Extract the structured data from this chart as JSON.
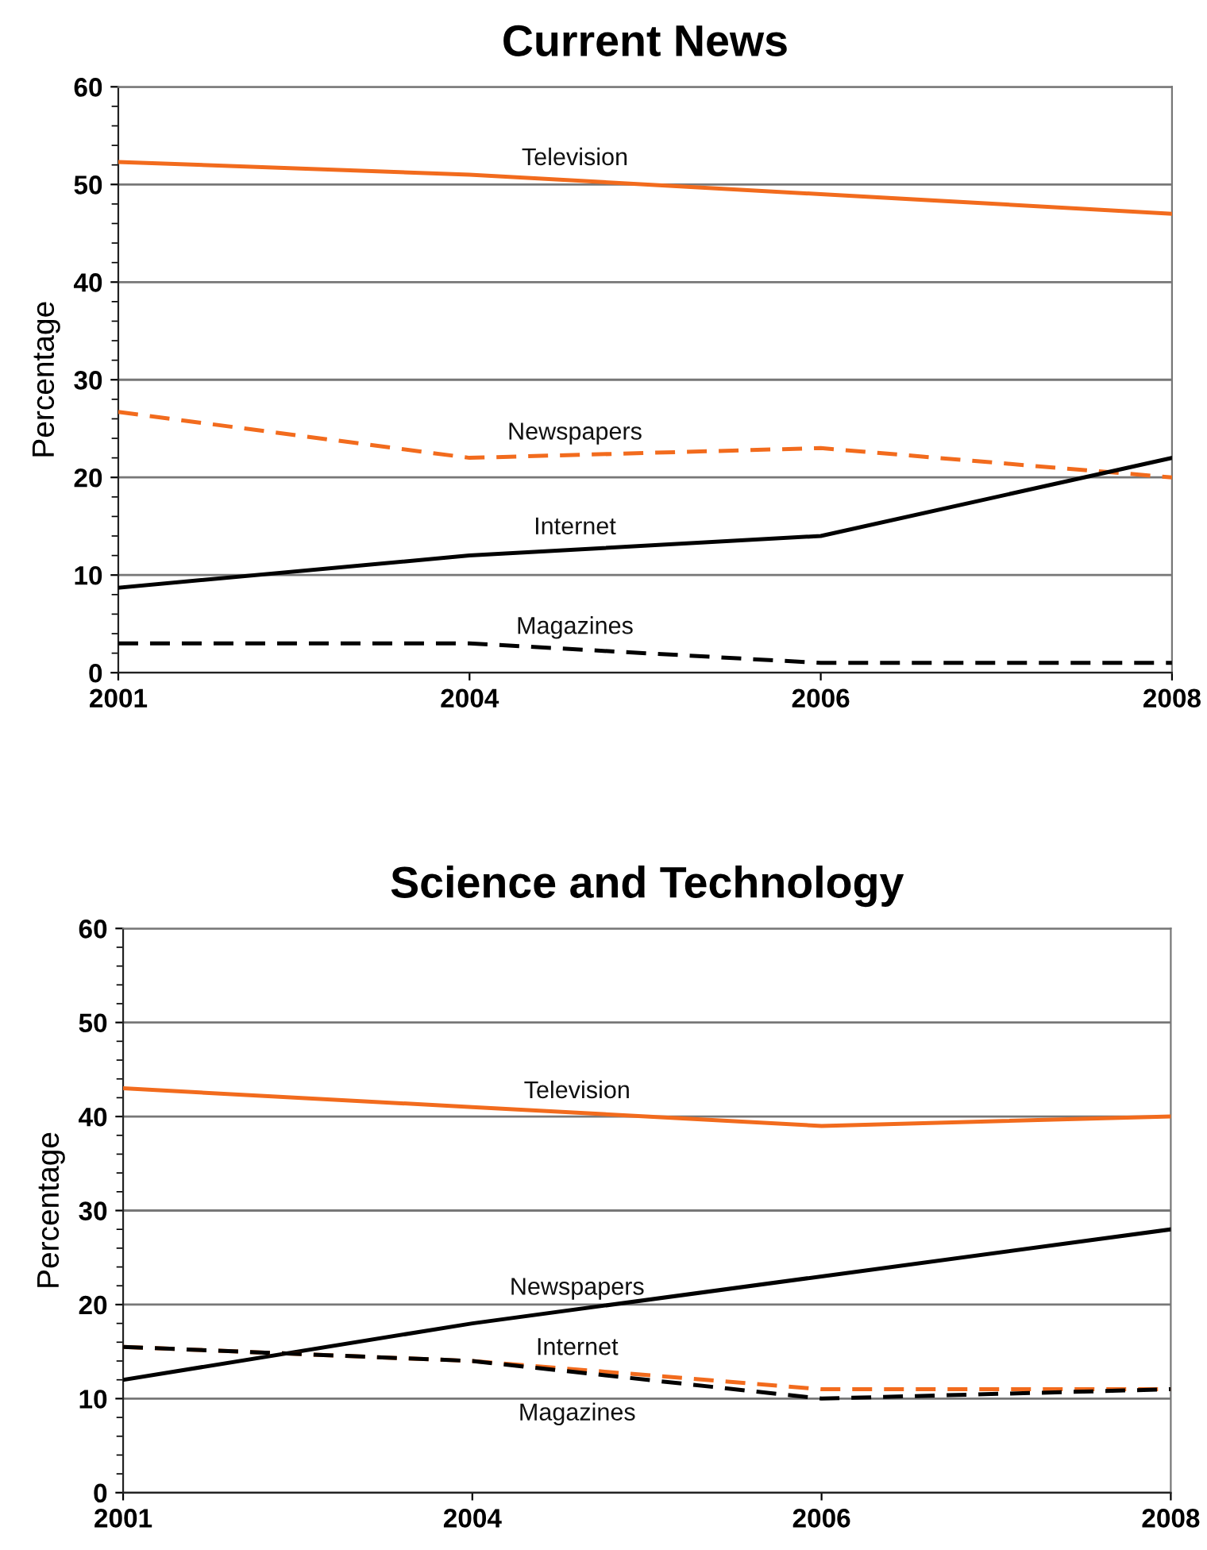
{
  "chart_data": [
    {
      "type": "line",
      "title": "Current News",
      "ylabel": "Percentage",
      "categories": [
        "2001",
        "2004",
        "2006",
        "2008"
      ],
      "ylim": [
        0,
        60
      ],
      "yticks": [
        0,
        {
          "value": 2,
          "label": null
        },
        {
          "value": 4,
          "label": null
        },
        {
          "value": 6,
          "label": null
        },
        {
          "value": 8,
          "label": null
        },
        10,
        {
          "value": 12,
          "label": null
        },
        {
          "value": 14,
          "label": null
        },
        {
          "value": 16,
          "label": null
        },
        {
          "value": 18,
          "label": null
        },
        20,
        {
          "value": 22,
          "label": null
        },
        {
          "value": 24,
          "label": null
        },
        {
          "value": 26,
          "label": null
        },
        {
          "value": 28,
          "label": null
        },
        30,
        {
          "value": 32,
          "label": null
        },
        {
          "value": 34,
          "label": null
        },
        {
          "value": 36,
          "label": null
        },
        {
          "value": 38,
          "label": null
        },
        40,
        {
          "value": 42,
          "label": null
        },
        {
          "value": 44,
          "label": null
        },
        {
          "value": 46,
          "label": null
        },
        {
          "value": 48,
          "label": null
        },
        50,
        {
          "value": 52,
          "label": null
        },
        {
          "value": 54,
          "label": null
        },
        {
          "value": 56,
          "label": null
        },
        {
          "value": 58,
          "label": null
        },
        60
      ],
      "grid": "y",
      "marker": "none",
      "series": [
        {
          "name": "Television",
          "color": "#f26b1d",
          "line_style": "solid",
          "values": [
            52.3,
            51,
            49,
            47
          ]
        },
        {
          "name": "Newspapers",
          "color": "#f26b1d",
          "line_style": "dashed",
          "values": [
            26.7,
            22,
            23,
            20
          ]
        },
        {
          "name": "Internet",
          "color": "#000000",
          "line_style": "solid",
          "values": [
            8.7,
            12,
            14,
            22
          ]
        },
        {
          "name": "Magazines",
          "color": "#000000",
          "line_style": "dashed",
          "values": [
            3,
            3,
            1,
            1
          ]
        }
      ]
    },
    {
      "type": "line",
      "title": "Science and Technology",
      "ylabel": "Percentage",
      "categories": [
        "2001",
        "2004",
        "2006",
        "2008"
      ],
      "ylim": [
        0,
        60
      ],
      "yticks": [
        0,
        {
          "value": 2,
          "label": null
        },
        {
          "value": 4,
          "label": null
        },
        {
          "value": 6,
          "label": null
        },
        {
          "value": 8,
          "label": null
        },
        10,
        {
          "value": 12,
          "label": null
        },
        {
          "value": 14,
          "label": null
        },
        {
          "value": 16,
          "label": null
        },
        {
          "value": 18,
          "label": null
        },
        20,
        {
          "value": 22,
          "label": null
        },
        {
          "value": 24,
          "label": null
        },
        {
          "value": 26,
          "label": null
        },
        {
          "value": 28,
          "label": null
        },
        30,
        {
          "value": 32,
          "label": null
        },
        {
          "value": 34,
          "label": null
        },
        {
          "value": 36,
          "label": null
        },
        {
          "value": 38,
          "label": null
        },
        40,
        {
          "value": 42,
          "label": null
        },
        {
          "value": 44,
          "label": null
        },
        {
          "value": 46,
          "label": null
        },
        {
          "value": 48,
          "label": null
        },
        50,
        {
          "value": 52,
          "label": null
        },
        {
          "value": 54,
          "label": null
        },
        {
          "value": 56,
          "label": null
        },
        {
          "value": 58,
          "label": null
        },
        60
      ],
      "grid": "y",
      "marker": "none",
      "series": [
        {
          "name": "Television",
          "color": "#f26b1d",
          "line_style": "solid",
          "values": [
            43,
            41,
            39,
            40
          ]
        },
        {
          "name": "Newspapers",
          "color": "#000000",
          "line_style": "solid",
          "values": [
            12,
            18,
            23,
            28
          ]
        },
        {
          "name": "Internet",
          "color": "#f26b1d",
          "line_style": "dashed",
          "values": [
            15.5,
            14,
            11,
            11
          ]
        },
        {
          "name": "Magazines",
          "color": "#000000",
          "line_style": "dashed",
          "values": [
            15.5,
            14,
            10,
            11
          ]
        }
      ]
    }
  ]
}
